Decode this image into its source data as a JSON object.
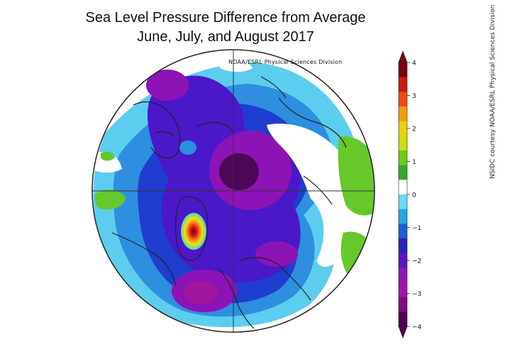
{
  "title_line1": "Sea Level Pressure Difference from Average",
  "title_line2": "June, July, and August 2017",
  "map_credit": "NOAA/ESRL Physical Sciences Division",
  "side_credit": "NSIDC courtesy NOAA/ESRL Physical Sciences Division",
  "colorbar": {
    "ticks": [
      "4",
      "3",
      "2",
      "1",
      "0",
      "−1",
      "−2",
      "−3",
      "−4"
    ],
    "colors": [
      "#7a0010",
      "#c81a12",
      "#ee4a12",
      "#f59a10",
      "#e8d20c",
      "#c8e014",
      "#6acc18",
      "#3aa62a",
      "#ffffff",
      "#6fd8f2",
      "#25a7e4",
      "#1d5ed6",
      "#2a22b8",
      "#5a16c2",
      "#8a18b8",
      "#a214a0",
      "#7a0e7a",
      "#4a0652"
    ]
  },
  "map_colors": {
    "ocean_bg": "#ffffff",
    "light_blue": "#5ccdef",
    "mid_blue": "#2e8ee0",
    "dark_blue": "#1f3dcf",
    "indigo": "#4a18c8",
    "purple": "#8c14b6",
    "magenta": "#a1169e",
    "deep_purple": "#4c0757",
    "green": "#66c82a",
    "yellow": "#f0e020",
    "red": "#d8141a",
    "coast": "#222222"
  }
}
